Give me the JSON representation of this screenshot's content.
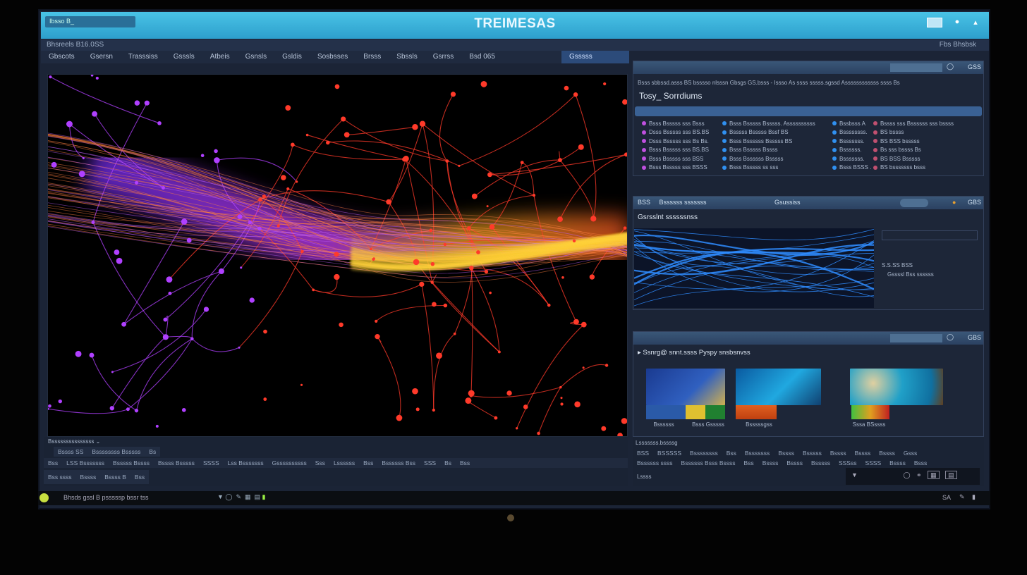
{
  "window": {
    "title": "TREIMESAS",
    "title_box_label": "Ibsso",
    "search_label": "B_"
  },
  "subbar": {
    "left": "Bhsreels B16.0SS",
    "right": "Fbs Bhsbsk"
  },
  "tabs": [
    "Gbscots",
    "Gsersn",
    "Trasssiss",
    "Gsssls",
    "Atbeis",
    "Gsnsls",
    "Gsldis",
    "Sosbsses",
    "Brsss",
    "Sbssls",
    "Gsrrss",
    "Bsd 065",
    "Gsssss"
  ],
  "panel1": {
    "header_right": "GSS",
    "description": "Bsss sbbssd.asss BS bsssso nlsssn Gbsgs GS.bsss - Issso As ssss sssss.sgssd Assssssssssss ssss Bs",
    "title": "Tosy_ Sorrdiums",
    "col1": [
      "Bsss Bsssss sss Bsss",
      "Dsss Bsssss sss BS.BS",
      "Dsss Bsssss sss Bs Bs.",
      "Bsss Bsssss sss BS.BS",
      "Bsss Bsssss sss BSS",
      "Bsss Bsssss sss BSSS"
    ],
    "col2": [
      "Bsss Bsssss Bsssss.  Assssssssss",
      "Bsssss Bsssss Bssf      BS",
      "Bsss Bssssss Bsssss    BS",
      "Bsss Bsssss Bssss",
      "Bsss Bssssss Bsssss",
      "Bsss Bsssss ss sss"
    ],
    "col3": [
      "Bssbsss  A",
      "Bssssssss.",
      "Bsssssss.",
      "Bssssss.",
      "Bsssssss.",
      "Bsss BSSS ."
    ],
    "col4": [
      "Bssss sss Bssssss sss bssss",
      "BS bssss",
      "BS BSS bsssss",
      "Bs sss bssss Bs",
      "BS BSS Bsssss",
      "BS bsssssss bsss"
    ]
  },
  "panel2": {
    "header_left": "BSS",
    "header_title": "Bssssss sssssss",
    "header_center": "Gsussiss",
    "header_right": "GBS",
    "title": "Gsrsslnt ssssssnss",
    "info1": "S.S.SS BSS",
    "info2": "Gssssl Bss ssssss"
  },
  "panel3": {
    "header_right": "GBS",
    "title": "Ssnrg@ snnt.ssss Pyspy snsbsnvss",
    "thumbnails": [
      "Bssssss",
      "Bsss Gsssss",
      "Bsssssgss",
      "Sssa BSssss"
    ]
  },
  "bottom_left": {
    "dropdown": "Bsssssssssssssss",
    "row1": [
      "Bssss SS",
      "Bssssssss Bsssss",
      "Bs"
    ],
    "row2": [
      "Bss",
      "LSS Bsssssss",
      "Bsssss Bssss",
      "Bssss Bsssss",
      "SSSS",
      "Lss Bsssssss",
      "Gssssssssss",
      "Sss",
      "Lssssss",
      "Bss",
      "Bssssss Bss",
      "SSS",
      "Bs",
      "Bss"
    ],
    "row3": [
      "Bss ssss",
      "Bssss",
      "Bssss B",
      "Bss"
    ]
  },
  "bottom_right": {
    "title": "Lsssssss.bssssg",
    "row1": [
      "BSS",
      "BSSSSS",
      "Bssssssss",
      "Bss",
      "Bsssssss",
      "Bssss",
      "Bsssss",
      "Bssss",
      "Bssss",
      "Bssss",
      "Gsss"
    ],
    "row2": [
      "Bssssss ssss",
      "Bssssss Bsss Bssss",
      "Bss",
      "Bssss",
      "Bssss",
      "Bsssss",
      "SSSss",
      "SSSS",
      "Bssss",
      "Bsss"
    ],
    "status": "Lssss"
  },
  "taskbar": {
    "text": "Bhsds  gssl B psssssp  bssr tss",
    "right": "SA"
  },
  "colors": {
    "accent": "#3ab4de",
    "panel": "#1d2638",
    "tab_active": "#2c4b7a",
    "network_red": "#ff3a2a",
    "network_purple": "#b040ff",
    "network_yellow": "#ffd23a",
    "map_blue": "#2f8cff"
  }
}
